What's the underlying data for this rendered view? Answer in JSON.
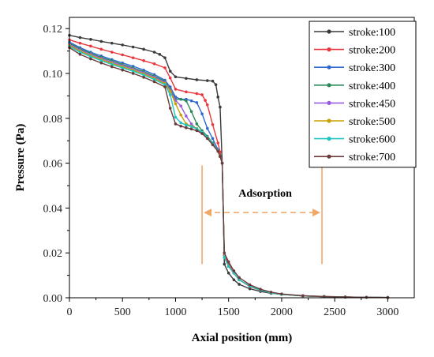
{
  "chart_data": {
    "type": "line",
    "xlabel": "Axial position (mm)",
    "ylabel": "Pressure (Pa)",
    "xlim": [
      0,
      3250
    ],
    "ylim": [
      0,
      0.125
    ],
    "x_ticks": [
      0,
      500,
      1000,
      1500,
      2000,
      2500,
      3000
    ],
    "y_ticks": [
      0.0,
      0.02,
      0.04,
      0.06,
      0.08,
      0.1,
      0.12
    ],
    "x_tick_labels": [
      "0",
      "500",
      "1000",
      "1500",
      "2000",
      "2500",
      "3000"
    ],
    "y_tick_labels": [
      "0.00",
      "0.02",
      "0.04",
      "0.06",
      "0.08",
      "0.10",
      "0.12"
    ],
    "grid": false,
    "legend_position": "top-right",
    "annotation": {
      "text": "Adsorption",
      "x_start": 1250,
      "x_end": 2380,
      "y_arrow": 0.038,
      "y_line_low": 0.015,
      "y_line_high": 0.059,
      "color": "#f0a868"
    },
    "series": [
      {
        "name": "stroke:100",
        "color": "#3a3a3a",
        "x": [
          0,
          100,
          200,
          300,
          400,
          500,
          600,
          700,
          800,
          850,
          900,
          950,
          1000,
          1100,
          1200,
          1300,
          1350,
          1380,
          1400,
          1420,
          1440,
          1460,
          1500,
          1550,
          1600,
          1700,
          1800,
          1900,
          2000,
          2200,
          2400,
          2600,
          2800,
          3000
        ],
        "y": [
          0.117,
          0.116,
          0.1152,
          0.1143,
          0.1135,
          0.1127,
          0.1118,
          0.1108,
          0.1095,
          0.1085,
          0.107,
          0.101,
          0.0985,
          0.0978,
          0.0972,
          0.0968,
          0.0966,
          0.095,
          0.0895,
          0.085,
          0.06,
          0.015,
          0.011,
          0.008,
          0.006,
          0.004,
          0.0028,
          0.002,
          0.0015,
          0.0009,
          0.0006,
          0.0004,
          0.0002,
          0.0001
        ]
      },
      {
        "name": "stroke:200",
        "color": "#e8373d",
        "x": [
          0,
          100,
          200,
          300,
          400,
          500,
          600,
          700,
          800,
          900,
          950,
          1000,
          1100,
          1200,
          1250,
          1280,
          1300,
          1350,
          1400,
          1420,
          1440,
          1460,
          1500,
          1550,
          1600,
          1700,
          1800,
          1900,
          2000,
          2200,
          2400,
          2600,
          2800,
          3000
        ],
        "y": [
          0.115,
          0.1135,
          0.1122,
          0.1108,
          0.1095,
          0.1083,
          0.107,
          0.1057,
          0.1043,
          0.1025,
          0.098,
          0.093,
          0.0918,
          0.091,
          0.0905,
          0.088,
          0.086,
          0.0772,
          0.069,
          0.065,
          0.06,
          0.019,
          0.015,
          0.011,
          0.008,
          0.005,
          0.0033,
          0.0022,
          0.0015,
          0.0009,
          0.0005,
          0.0003,
          0.0002,
          0.0001
        ]
      },
      {
        "name": "stroke:300",
        "color": "#2f69d0",
        "x": [
          0,
          100,
          200,
          300,
          400,
          500,
          600,
          700,
          800,
          900,
          950,
          1000,
          1050,
          1100,
          1150,
          1200,
          1250,
          1300,
          1350,
          1400,
          1420,
          1440,
          1460,
          1500,
          1550,
          1600,
          1700,
          1800,
          1900,
          2000,
          2200,
          2400,
          2600,
          2800,
          3000
        ],
        "y": [
          0.114,
          0.1115,
          0.1095,
          0.1078,
          0.1062,
          0.1047,
          0.1032,
          0.1015,
          0.0995,
          0.097,
          0.094,
          0.0895,
          0.0885,
          0.0885,
          0.0878,
          0.087,
          0.082,
          0.0755,
          0.071,
          0.066,
          0.063,
          0.06,
          0.018,
          0.014,
          0.011,
          0.008,
          0.0052,
          0.0034,
          0.0022,
          0.0015,
          0.0008,
          0.0005,
          0.0003,
          0.0002,
          0.0001
        ]
      },
      {
        "name": "stroke:400",
        "color": "#2a8a5a",
        "x": [
          0,
          100,
          200,
          300,
          400,
          500,
          600,
          700,
          800,
          900,
          950,
          1000,
          1050,
          1100,
          1150,
          1200,
          1250,
          1300,
          1350,
          1400,
          1420,
          1440,
          1460,
          1500,
          1550,
          1600,
          1700,
          1800,
          1900,
          2000,
          2200,
          2400,
          2600,
          2800,
          3000
        ],
        "y": [
          0.1135,
          0.111,
          0.109,
          0.1072,
          0.1056,
          0.104,
          0.1025,
          0.1008,
          0.0988,
          0.0965,
          0.093,
          0.0885,
          0.0885,
          0.0878,
          0.083,
          0.0775,
          0.0745,
          0.072,
          0.069,
          0.0655,
          0.063,
          0.06,
          0.018,
          0.014,
          0.011,
          0.008,
          0.0052,
          0.0034,
          0.0022,
          0.0015,
          0.0008,
          0.0005,
          0.0003,
          0.0002,
          0.0001
        ]
      },
      {
        "name": "stroke:450",
        "color": "#9b5de0",
        "x": [
          0,
          100,
          200,
          300,
          400,
          500,
          600,
          700,
          800,
          900,
          950,
          1000,
          1050,
          1100,
          1150,
          1200,
          1250,
          1300,
          1350,
          1400,
          1420,
          1440,
          1460,
          1500,
          1550,
          1600,
          1700,
          1800,
          1900,
          2000,
          2200,
          2400,
          2600,
          2800,
          3000
        ],
        "y": [
          0.113,
          0.1105,
          0.1085,
          0.1067,
          0.105,
          0.1035,
          0.102,
          0.1003,
          0.0983,
          0.096,
          0.0925,
          0.088,
          0.0855,
          0.081,
          0.0775,
          0.075,
          0.0735,
          0.0715,
          0.0685,
          0.0655,
          0.063,
          0.06,
          0.018,
          0.014,
          0.011,
          0.008,
          0.0052,
          0.0034,
          0.0022,
          0.0015,
          0.0008,
          0.0005,
          0.0003,
          0.0002,
          0.0001
        ]
      },
      {
        "name": "stroke:500",
        "color": "#c8a000",
        "x": [
          0,
          100,
          200,
          300,
          400,
          500,
          600,
          700,
          800,
          900,
          950,
          1000,
          1050,
          1100,
          1150,
          1200,
          1250,
          1300,
          1350,
          1400,
          1420,
          1440,
          1460,
          1500,
          1550,
          1600,
          1700,
          1800,
          1900,
          2000,
          2200,
          2400,
          2600,
          2800,
          3000
        ],
        "y": [
          0.1125,
          0.11,
          0.108,
          0.1062,
          0.1045,
          0.103,
          0.1015,
          0.0998,
          0.0978,
          0.0955,
          0.092,
          0.0865,
          0.0815,
          0.0775,
          0.0765,
          0.0755,
          0.0738,
          0.0715,
          0.0685,
          0.0655,
          0.063,
          0.06,
          0.018,
          0.014,
          0.011,
          0.008,
          0.0052,
          0.0034,
          0.0022,
          0.0015,
          0.0008,
          0.0005,
          0.0003,
          0.0002,
          0.0001
        ]
      },
      {
        "name": "stroke:600",
        "color": "#20c4c0",
        "x": [
          0,
          100,
          200,
          300,
          400,
          500,
          600,
          700,
          800,
          900,
          950,
          1000,
          1050,
          1100,
          1150,
          1200,
          1250,
          1300,
          1350,
          1400,
          1420,
          1440,
          1460,
          1500,
          1550,
          1600,
          1700,
          1800,
          1900,
          2000,
          2200,
          2400,
          2600,
          2800,
          3000
        ],
        "y": [
          0.112,
          0.1095,
          0.1075,
          0.1057,
          0.104,
          0.1025,
          0.101,
          0.0993,
          0.0973,
          0.095,
          0.0905,
          0.0805,
          0.078,
          0.077,
          0.0763,
          0.0753,
          0.0738,
          0.0715,
          0.0685,
          0.0655,
          0.063,
          0.06,
          0.018,
          0.014,
          0.011,
          0.008,
          0.0052,
          0.0034,
          0.0022,
          0.0015,
          0.0008,
          0.0005,
          0.0003,
          0.0002,
          0.0001
        ]
      },
      {
        "name": "stroke:700",
        "color": "#6b3a3a",
        "x": [
          0,
          100,
          200,
          300,
          400,
          500,
          600,
          700,
          800,
          900,
          950,
          1000,
          1050,
          1100,
          1150,
          1200,
          1250,
          1300,
          1350,
          1400,
          1420,
          1440,
          1460,
          1500,
          1550,
          1600,
          1700,
          1800,
          1900,
          2000,
          2200,
          2400,
          2600,
          2800,
          3000
        ],
        "y": [
          0.1115,
          0.1085,
          0.1065,
          0.1047,
          0.103,
          0.1015,
          0.1,
          0.0983,
          0.0963,
          0.094,
          0.0845,
          0.0775,
          0.0765,
          0.0758,
          0.0752,
          0.0745,
          0.0732,
          0.071,
          0.0682,
          0.0653,
          0.063,
          0.06,
          0.02,
          0.016,
          0.012,
          0.009,
          0.0058,
          0.0038,
          0.0025,
          0.0017,
          0.0009,
          0.0005,
          0.0003,
          0.0002,
          0.0001
        ]
      }
    ]
  }
}
